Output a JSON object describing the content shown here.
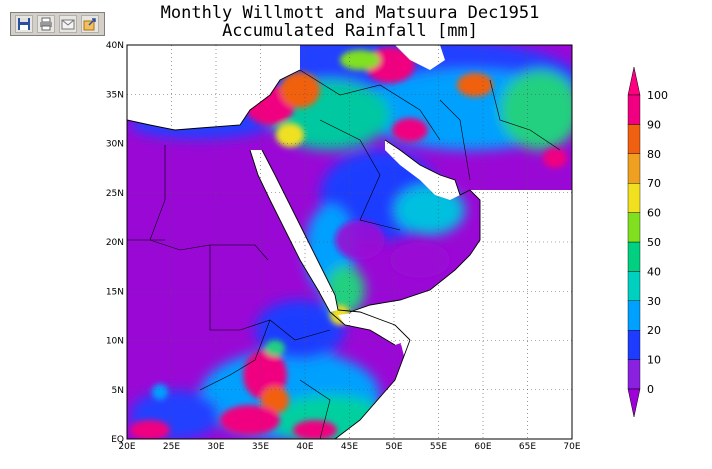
{
  "toolbar": {
    "buttons": [
      {
        "name": "save-button",
        "icon": "floppy-disk-icon",
        "color": "#2a4f9e"
      },
      {
        "name": "print-button",
        "icon": "printer-icon",
        "color": "#6a6a6a"
      },
      {
        "name": "email-button",
        "icon": "envelope-icon",
        "color": "#7a7a7a"
      },
      {
        "name": "export-button",
        "icon": "export-icon",
        "color": "#d08a20"
      }
    ]
  },
  "map": {
    "title_line1": "Monthly Willmott and Matsuura Dec1951",
    "title_line2": "Accumulated Rainfall [mm]",
    "lon_labels": [
      "20E",
      "25E",
      "30E",
      "35E",
      "40E",
      "45E",
      "50E",
      "55E",
      "60E",
      "65E",
      "70E"
    ],
    "lat_labels": [
      "EQ",
      "5N",
      "10N",
      "15N",
      "20N",
      "25N",
      "30N",
      "35N",
      "40N"
    ],
    "gridlines": true
  },
  "colorbar": {
    "labels": [
      "0",
      "10",
      "20",
      "30",
      "40",
      "50",
      "60",
      "70",
      "80",
      "90",
      "100"
    ],
    "colors": [
      "#a000d8",
      "#8a20e0",
      "#1e3cff",
      "#00a0ff",
      "#00d0c0",
      "#00d080",
      "#80e020",
      "#f0e020",
      "#f0a020",
      "#f06010",
      "#f00080",
      "#ff0080"
    ]
  },
  "colors": {
    "dry": "#9a08d6",
    "sea": "#ffffff",
    "coast": "#000000"
  }
}
